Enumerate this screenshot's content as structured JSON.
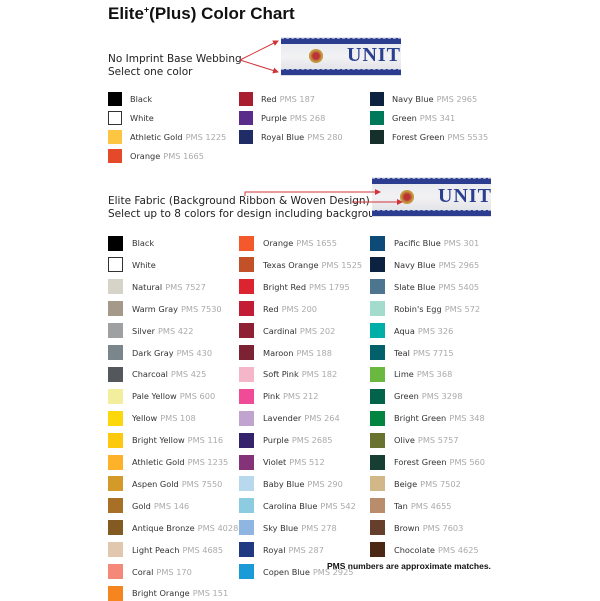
{
  "title": {
    "main": "Elite",
    "sup": "+",
    "rest": "(Plus) Color Chart"
  },
  "base_section": {
    "heading": "No Imprint Base Webbing",
    "subheading": "Select one color",
    "sample_text": "UNIT",
    "columns": [
      [
        {
          "name": "Black",
          "pms": "",
          "color": "#000000"
        },
        {
          "name": "White",
          "pms": "",
          "color": "#ffffff"
        },
        {
          "name": "Athletic Gold",
          "pms": "PMS 1225",
          "color": "#fcc643"
        },
        {
          "name": "Orange",
          "pms": "PMS 1665",
          "color": "#e4492a"
        }
      ],
      [
        {
          "name": "Red",
          "pms": "PMS 187",
          "color": "#a81e2f"
        },
        {
          "name": "Purple",
          "pms": "PMS 268",
          "color": "#5a2d8a"
        },
        {
          "name": "Royal Blue",
          "pms": "PMS 280",
          "color": "#1f2c66"
        }
      ],
      [
        {
          "name": "Navy Blue",
          "pms": "PMS 2965",
          "color": "#0b2240"
        },
        {
          "name": "Green",
          "pms": "PMS 341",
          "color": "#00785a"
        },
        {
          "name": "Forest Green",
          "pms": "PMS 5535",
          "color": "#15302a"
        }
      ]
    ]
  },
  "fabric_section": {
    "heading": "Elite Fabric (Background Ribbon & Woven Design)",
    "subheading": "Select up to 8 colors for design including background.",
    "sample_text": "UNIT",
    "columns": [
      [
        {
          "name": "Black",
          "pms": "",
          "color": "#000000"
        },
        {
          "name": "White",
          "pms": "",
          "color": "#ffffff"
        },
        {
          "name": "Natural",
          "pms": "PMS 7527",
          "color": "#d6d3c9"
        },
        {
          "name": "Warm Gray",
          "pms": "PMS 7530",
          "color": "#a59a8a"
        },
        {
          "name": "Silver",
          "pms": "PMS 422",
          "color": "#9ea0a1"
        },
        {
          "name": "Dark Gray",
          "pms": "PMS 430",
          "color": "#7b868c"
        },
        {
          "name": "Charcoal",
          "pms": "PMS 425",
          "color": "#54585c"
        },
        {
          "name": "Pale Yellow",
          "pms": "PMS 600",
          "color": "#f2ee9e"
        },
        {
          "name": "Yellow",
          "pms": "PMS 108",
          "color": "#fcd80a"
        },
        {
          "name": "Bright Yellow",
          "pms": "PMS 116",
          "color": "#fdc90f"
        },
        {
          "name": "Athletic Gold",
          "pms": "PMS 1235",
          "color": "#fdb22a"
        },
        {
          "name": "Aspen Gold",
          "pms": "PMS 7550",
          "color": "#d39a2a"
        },
        {
          "name": "Gold",
          "pms": "PMS 146",
          "color": "#a86f27"
        },
        {
          "name": "Antique Bronze",
          "pms": "PMS 4028",
          "color": "#835a22"
        },
        {
          "name": "Light Peach",
          "pms": "PMS 4685",
          "color": "#e1c7ad"
        },
        {
          "name": "Coral",
          "pms": "PMS 170",
          "color": "#f4897a"
        },
        {
          "name": "Bright Orange",
          "pms": "PMS 151",
          "color": "#f5861f"
        }
      ],
      [
        {
          "name": "Orange",
          "pms": "PMS 1655",
          "color": "#f3592a"
        },
        {
          "name": "Texas Orange",
          "pms": "PMS 1525",
          "color": "#c2512a"
        },
        {
          "name": "Bright Red",
          "pms": "PMS 1795",
          "color": "#dc2430"
        },
        {
          "name": "Red",
          "pms": "PMS 200",
          "color": "#c21d35"
        },
        {
          "name": "Cardinal",
          "pms": "PMS 202",
          "color": "#8f1f33"
        },
        {
          "name": "Maroon",
          "pms": "PMS 188",
          "color": "#7c2232"
        },
        {
          "name": "Soft Pink",
          "pms": "PMS 182",
          "color": "#f5b6ca"
        },
        {
          "name": "Pink",
          "pms": "PMS 212",
          "color": "#ef4b96"
        },
        {
          "name": "Lavender",
          "pms": "PMS 264",
          "color": "#c1a3d0"
        },
        {
          "name": "Purple",
          "pms": "PMS 2685",
          "color": "#34226b"
        },
        {
          "name": "Violet",
          "pms": "PMS 512",
          "color": "#853379"
        },
        {
          "name": "Baby Blue",
          "pms": "PMS 290",
          "color": "#b8d8ee"
        },
        {
          "name": "Carolina Blue",
          "pms": "PMS 542",
          "color": "#8ccbe0"
        },
        {
          "name": "Sky Blue",
          "pms": "PMS 278",
          "color": "#8fb6e1"
        },
        {
          "name": "Royal",
          "pms": "PMS 287",
          "color": "#1f3a80"
        },
        {
          "name": "Copen Blue",
          "pms": "PMS 2925",
          "color": "#1a9ad6"
        }
      ],
      [
        {
          "name": "Pacific Blue",
          "pms": "PMS 301",
          "color": "#0d4a78"
        },
        {
          "name": "Navy Blue",
          "pms": "PMS 2965",
          "color": "#0b2240"
        },
        {
          "name": "Slate Blue",
          "pms": "PMS 5405",
          "color": "#4e7590"
        },
        {
          "name": "Robin's Egg",
          "pms": "PMS 572",
          "color": "#a3dbcd"
        },
        {
          "name": "Aqua",
          "pms": "PMS 326",
          "color": "#00aea8"
        },
        {
          "name": "Teal",
          "pms": "PMS 7715",
          "color": "#02606a"
        },
        {
          "name": "Lime",
          "pms": "PMS 368",
          "color": "#6ab83f"
        },
        {
          "name": "Green",
          "pms": "PMS 3298",
          "color": "#02634a"
        },
        {
          "name": "Bright Green",
          "pms": "PMS 348",
          "color": "#03843f"
        },
        {
          "name": "Olive",
          "pms": "PMS 5757",
          "color": "#6a7230"
        },
        {
          "name": "Forest Green",
          "pms": "PMS 560",
          "color": "#173e32"
        },
        {
          "name": "Beige",
          "pms": "PMS 7502",
          "color": "#d2b888"
        },
        {
          "name": "Tan",
          "pms": "PMS 4655",
          "color": "#b98d6c"
        },
        {
          "name": "Brown",
          "pms": "PMS 7603",
          "color": "#653f2c"
        },
        {
          "name": "Chocolate",
          "pms": "PMS 4625",
          "color": "#4b2816"
        }
      ]
    ]
  },
  "footnote": "PMS numbers are approximate matches.",
  "arrow_color": "#d0343a"
}
